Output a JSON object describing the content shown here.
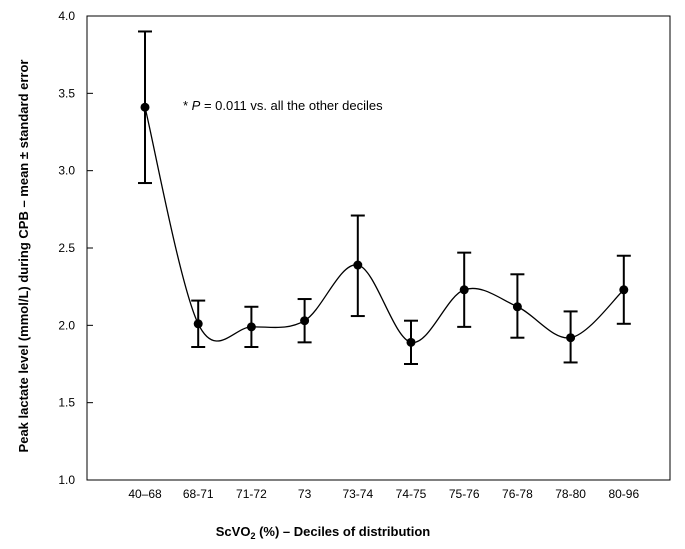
{
  "chart_data": {
    "type": "line",
    "title": "",
    "xlabel": "ScVO2 (%) – Deciles of distribution",
    "xlabel_main": "ScVO",
    "xlabel_sub": "2",
    "xlabel_rest": " (%) – Deciles of distribution",
    "ylabel": "Peak lactate level (mmol/L) during CPB – mean ± standard error",
    "ylim": [
      1.0,
      4.0
    ],
    "yticks": [
      "1.0",
      "1.5",
      "2.0",
      "2.5",
      "3.0",
      "3.5",
      "4.0"
    ],
    "grid": false,
    "categories": [
      "40–68",
      "68-71",
      "71-72",
      "73",
      "73-74",
      "74-75",
      "75-76",
      "76-78",
      "78-80",
      "80-96"
    ],
    "series": [
      {
        "values": [
          3.41,
          2.01,
          1.99,
          2.03,
          2.39,
          1.89,
          2.23,
          2.12,
          1.92,
          2.23
        ],
        "error_upper": [
          3.9,
          2.16,
          2.12,
          2.17,
          2.71,
          2.03,
          2.47,
          2.33,
          2.09,
          2.45
        ],
        "error_lower": [
          2.92,
          1.86,
          1.86,
          1.89,
          2.06,
          1.75,
          1.99,
          1.92,
          1.76,
          2.01
        ]
      }
    ],
    "annotation": {
      "prefix": "* ",
      "italic": "P",
      "rest": " = 0.011 vs. all the other deciles"
    }
  }
}
